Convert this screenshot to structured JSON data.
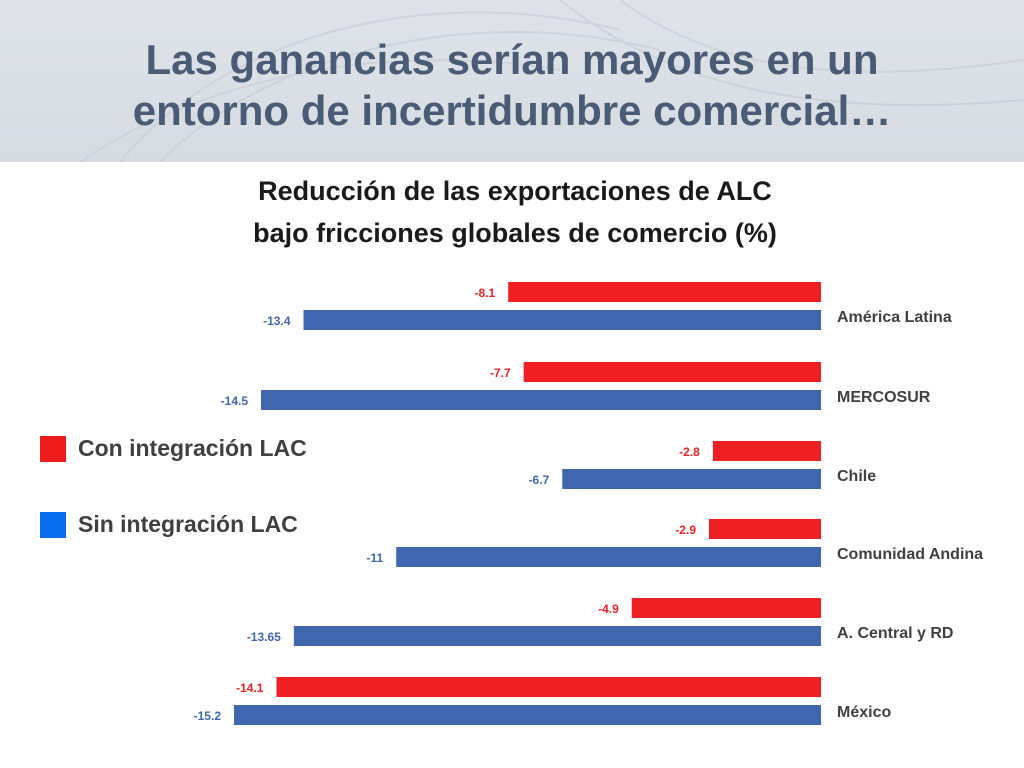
{
  "slide": {
    "title_line1": "Las ganancias serían mayores en un",
    "title_line2": "entorno de incertidumbre comercial…"
  },
  "chart_data": {
    "type": "bar",
    "orientation": "horizontal",
    "title": "Reducción de las exportaciones de ALC bajo fricciones globales de comercio (%)",
    "title_line1": "Reducción de las exportaciones de ALC",
    "title_line2": "bajo fricciones globales de comercio (%)",
    "categories": [
      "América Latina",
      "MERCOSUR",
      "Chile",
      "Comunidad Andina",
      "A. Central y RD",
      "México"
    ],
    "series": [
      {
        "name": "Con integración LAC",
        "color": "#ee2024",
        "values": [
          -8.1,
          -7.7,
          -2.8,
          -2.9,
          -4.9,
          -14.1
        ],
        "labels": [
          "-8.1",
          "-7.7",
          "-2.8",
          "-2.9",
          "-4.9",
          "-14.1"
        ]
      },
      {
        "name": "Sin integración LAC",
        "color": "#4166b0",
        "values": [
          -13.4,
          -14.5,
          -6.7,
          -11,
          -13.65,
          -15.2
        ],
        "labels": [
          "-13.4",
          "-14.5",
          "-6.7",
          "-11",
          "-13.65",
          "-15.2"
        ]
      }
    ],
    "xlim": [
      -15.2,
      0
    ],
    "axis_visible": false,
    "grid": false,
    "legend_position": "left",
    "data_labels": "outside-end"
  },
  "legend_colors": {
    "con": "#ee1c1c",
    "sin": "#0a6ef0"
  },
  "colors": {
    "title": "#4a5b75",
    "header_bg": "#d9dee5",
    "category_text": "#404040"
  }
}
